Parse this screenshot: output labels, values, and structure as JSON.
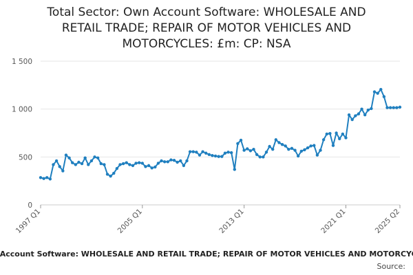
{
  "chart_data": {
    "type": "line",
    "title_lines": [
      "Total Sector: Own Account Software: WHOLESALE AND",
      "RETAIL TRADE; REPAIR OF MOTOR VEHICLES AND",
      "MOTORCYCLES: £m: CP: NSA"
    ],
    "footer_text": "Total Sector: Own Account Software: WHOLESALE AND RETAIL TRADE; REPAIR OF MOTOR VEHICLES AND MOTORCYCLES: £m: CP: NSA",
    "source_label": "Source:",
    "ylim": [
      0,
      1500
    ],
    "y_ticks": [
      0,
      500,
      1000,
      1500
    ],
    "y_tick_labels": [
      "0",
      "500",
      "1 000",
      "1 500"
    ],
    "x_tick_labels": [
      "1997 Q1",
      "2005 Q1",
      "2013 Q1",
      "2021 Q1",
      "2025 Q2"
    ],
    "x_tick_indices": [
      0,
      32,
      64,
      96,
      113
    ],
    "grid": true,
    "line_color": "#1f7fbf",
    "categories": [
      "1997 Q1",
      "1997 Q2",
      "1997 Q3",
      "1997 Q4",
      "1998 Q1",
      "1998 Q2",
      "1998 Q3",
      "1998 Q4",
      "1999 Q1",
      "1999 Q2",
      "1999 Q3",
      "1999 Q4",
      "2000 Q1",
      "2000 Q2",
      "2000 Q3",
      "2000 Q4",
      "2001 Q1",
      "2001 Q2",
      "2001 Q3",
      "2001 Q4",
      "2002 Q1",
      "2002 Q2",
      "2002 Q3",
      "2002 Q4",
      "2003 Q1",
      "2003 Q2",
      "2003 Q3",
      "2003 Q4",
      "2004 Q1",
      "2004 Q2",
      "2004 Q3",
      "2004 Q4",
      "2005 Q1",
      "2005 Q2",
      "2005 Q3",
      "2005 Q4",
      "2006 Q1",
      "2006 Q2",
      "2006 Q3",
      "2006 Q4",
      "2007 Q1",
      "2007 Q2",
      "2007 Q3",
      "2007 Q4",
      "2008 Q1",
      "2008 Q2",
      "2008 Q3",
      "2008 Q4",
      "2009 Q1",
      "2009 Q2",
      "2009 Q3",
      "2009 Q4",
      "2010 Q1",
      "2010 Q2",
      "2010 Q3",
      "2010 Q4",
      "2011 Q1",
      "2011 Q2",
      "2011 Q3",
      "2011 Q4",
      "2012 Q1",
      "2012 Q2",
      "2012 Q3",
      "2012 Q4",
      "2013 Q1",
      "2013 Q2",
      "2013 Q3",
      "2013 Q4",
      "2014 Q1",
      "2014 Q2",
      "2014 Q3",
      "2014 Q4",
      "2015 Q1",
      "2015 Q2",
      "2015 Q3",
      "2015 Q4",
      "2016 Q1",
      "2016 Q2",
      "2016 Q3",
      "2016 Q4",
      "2017 Q1",
      "2017 Q2",
      "2017 Q3",
      "2017 Q4",
      "2018 Q1",
      "2018 Q2",
      "2018 Q3",
      "2018 Q4",
      "2019 Q1",
      "2019 Q2",
      "2019 Q3",
      "2019 Q4",
      "2020 Q1",
      "2020 Q2",
      "2020 Q3",
      "2020 Q4",
      "2021 Q1",
      "2021 Q2",
      "2021 Q3",
      "2021 Q4",
      "2022 Q1",
      "2022 Q2",
      "2022 Q3",
      "2022 Q4",
      "2023 Q1",
      "2023 Q2",
      "2023 Q3",
      "2023 Q4",
      "2024 Q1",
      "2024 Q2",
      "2024 Q3",
      "2024 Q4",
      "2025 Q1",
      "2025 Q2"
    ],
    "values": [
      285,
      275,
      285,
      270,
      420,
      460,
      400,
      355,
      520,
      490,
      440,
      420,
      445,
      430,
      490,
      420,
      460,
      500,
      490,
      430,
      420,
      320,
      300,
      330,
      380,
      420,
      430,
      440,
      420,
      410,
      435,
      440,
      435,
      400,
      410,
      385,
      395,
      435,
      460,
      450,
      450,
      470,
      465,
      445,
      460,
      410,
      460,
      555,
      555,
      550,
      520,
      555,
      540,
      525,
      515,
      510,
      505,
      505,
      540,
      550,
      545,
      370,
      640,
      675,
      570,
      585,
      565,
      580,
      525,
      500,
      500,
      550,
      610,
      580,
      680,
      650,
      630,
      615,
      580,
      590,
      570,
      510,
      560,
      575,
      595,
      615,
      620,
      520,
      570,
      680,
      740,
      745,
      620,
      750,
      690,
      740,
      700,
      940,
      890,
      930,
      950,
      1000,
      940,
      990,
      1005,
      1180,
      1165,
      1205,
      1130,
      1015,
      1015,
      1015,
      1015,
      1020
    ]
  }
}
